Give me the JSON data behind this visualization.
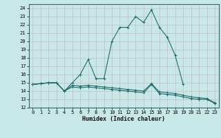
{
  "background_color": "#c8e8e8",
  "grid_color": "#aaaacc",
  "line_color": "#1a6b6b",
  "x_label": "Humidex (Indice chaleur)",
  "xlim": [
    -0.5,
    23.5
  ],
  "ylim": [
    12,
    24.5
  ],
  "yticks": [
    12,
    13,
    14,
    15,
    16,
    17,
    18,
    19,
    20,
    21,
    22,
    23,
    24
  ],
  "xticks": [
    0,
    1,
    2,
    3,
    4,
    5,
    6,
    7,
    8,
    9,
    10,
    11,
    12,
    13,
    14,
    15,
    16,
    17,
    18,
    19,
    20,
    21,
    22,
    23
  ],
  "line1_x": [
    0,
    1,
    2,
    3,
    4,
    5,
    6,
    7,
    8,
    9,
    10,
    11,
    12,
    13,
    14,
    15,
    16,
    17,
    18,
    19
  ],
  "line1_y": [
    14.8,
    14.9,
    15.0,
    15.0,
    14.0,
    15.0,
    16.0,
    17.8,
    15.5,
    15.5,
    20.0,
    21.7,
    21.7,
    23.0,
    22.3,
    23.8,
    21.7,
    20.5,
    18.3,
    14.8
  ],
  "line2_x": [
    0,
    1,
    2,
    3,
    4,
    5,
    6,
    7,
    8,
    9,
    10,
    11,
    12,
    13,
    14,
    15,
    16,
    17,
    18,
    19,
    20,
    21,
    22,
    23
  ],
  "line2_y": [
    14.8,
    14.9,
    15.0,
    15.0,
    14.0,
    14.5,
    14.4,
    14.5,
    14.4,
    14.3,
    14.2,
    14.1,
    14.0,
    13.9,
    13.8,
    14.8,
    13.7,
    13.6,
    13.5,
    13.3,
    13.1,
    13.0,
    13.0,
    12.5
  ],
  "line3_x": [
    0,
    1,
    2,
    3,
    4,
    5,
    6,
    7,
    8,
    9,
    10,
    11,
    12,
    13,
    14,
    15,
    16,
    17,
    18,
    19,
    20,
    21,
    22,
    23
  ],
  "line3_y": [
    14.8,
    14.9,
    15.0,
    15.0,
    14.0,
    14.7,
    14.6,
    14.7,
    14.6,
    14.5,
    14.4,
    14.3,
    14.2,
    14.1,
    14.0,
    14.9,
    13.9,
    13.8,
    13.7,
    13.5,
    13.3,
    13.2,
    13.1,
    12.6
  ]
}
